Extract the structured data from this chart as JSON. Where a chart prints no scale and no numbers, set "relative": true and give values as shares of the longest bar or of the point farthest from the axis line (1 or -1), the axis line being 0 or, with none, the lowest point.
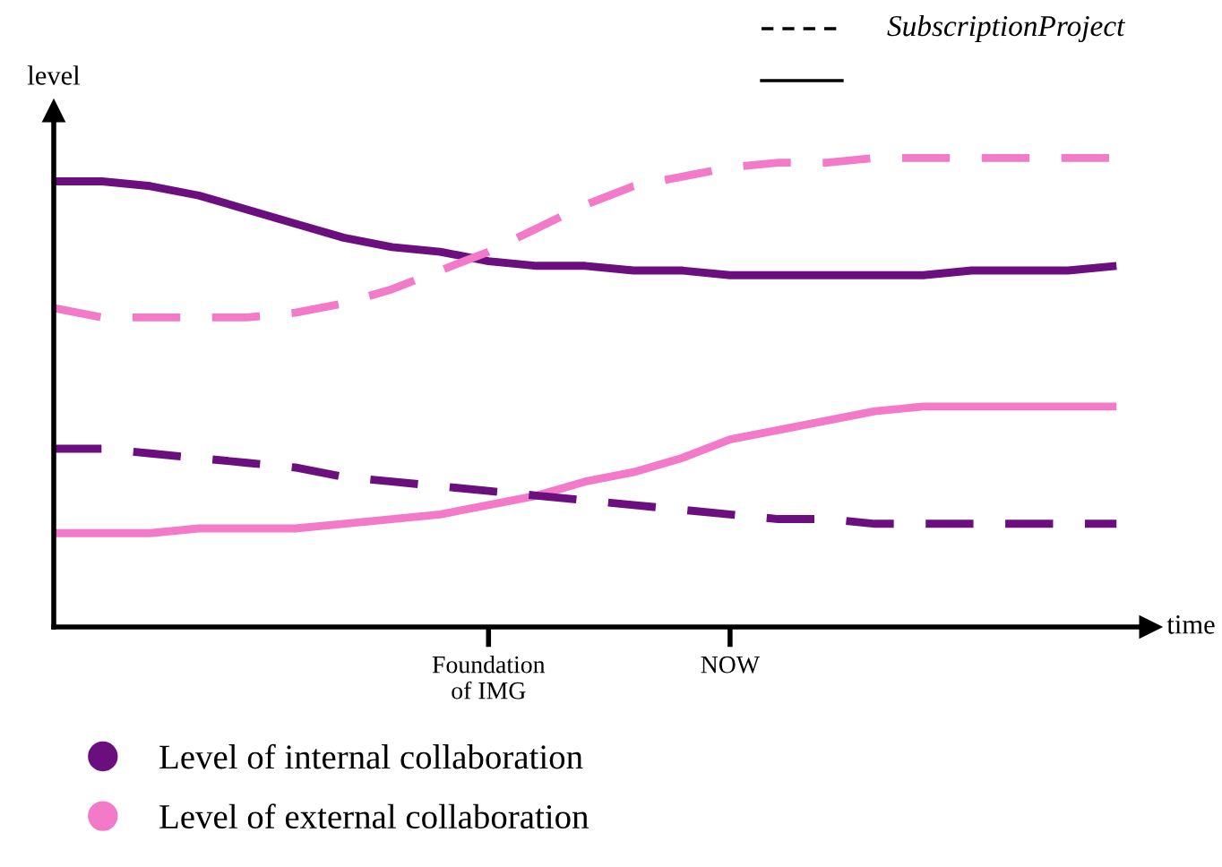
{
  "chart_data": {
    "type": "line",
    "relative": true,
    "xlabel": "time",
    "ylabel": "level",
    "categories": [
      null,
      null,
      null,
      null,
      null,
      null,
      null,
      null,
      null,
      "Foundation\nof IMG",
      null,
      null,
      null,
      null,
      "NOW",
      null,
      null,
      null,
      null,
      null,
      null,
      null,
      null
    ],
    "legend": "bottom left",
    "annotations": [
      "SubscriptionProject"
    ],
    "series": [
      {
        "name": "Level of internal collaboration",
        "color": "#6b0f7e",
        "line_style": "solid",
        "values": [
          0.95,
          0.95,
          0.94,
          0.92,
          0.89,
          0.86,
          0.83,
          0.81,
          0.8,
          0.78,
          0.77,
          0.77,
          0.76,
          0.76,
          0.75,
          0.75,
          0.75,
          0.75,
          0.75,
          0.76,
          0.76,
          0.76,
          0.77
        ]
      },
      {
        "name": "Level of external collaboration",
        "color": "#f27ac8",
        "line_style": "solid",
        "values": [
          0.2,
          0.2,
          0.2,
          0.21,
          0.21,
          0.21,
          0.22,
          0.23,
          0.24,
          0.26,
          0.28,
          0.31,
          0.33,
          0.36,
          0.4,
          0.42,
          0.44,
          0.46,
          0.47,
          0.47,
          0.47,
          0.47,
          0.47
        ]
      },
      {
        "color": "#f27ac8",
        "line_style": "dashed",
        "values": [
          0.68,
          0.66,
          0.66,
          0.66,
          0.66,
          0.67,
          0.69,
          0.72,
          0.76,
          0.8,
          0.85,
          0.9,
          0.94,
          0.96,
          0.98,
          0.99,
          0.99,
          1.0,
          1.0,
          1.0,
          1.0,
          1.0,
          1.0
        ]
      },
      {
        "color": "#6b0f7e",
        "line_style": "dashed",
        "values": [
          0.38,
          0.38,
          0.37,
          0.36,
          0.35,
          0.34,
          0.32,
          0.31,
          0.3,
          0.29,
          0.28,
          0.27,
          0.26,
          0.25,
          0.24,
          0.23,
          0.23,
          0.22,
          0.22,
          0.22,
          0.22,
          0.22,
          0.22
        ]
      }
    ]
  }
}
